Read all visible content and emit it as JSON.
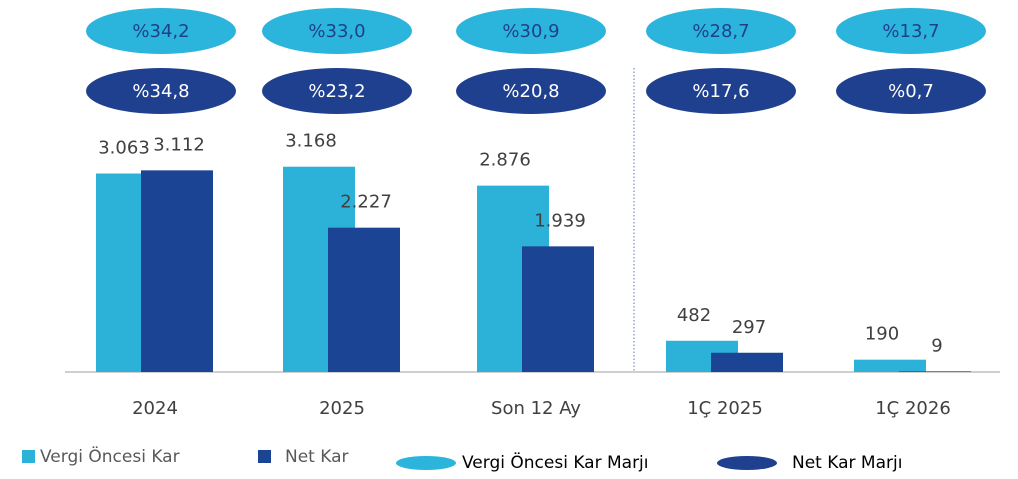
{
  "chart_data": {
    "type": "bar",
    "categories": [
      "2024",
      "2025",
      "Son 12 Ay",
      "1Ç 2025",
      "1Ç 2026"
    ],
    "series": [
      {
        "name": "Vergi Öncesi Kar",
        "color": "#2cb1d8",
        "values": [
          3063,
          3168,
          2876,
          482,
          190
        ],
        "value_labels": [
          "3.063",
          "3.168",
          "2.876",
          "482",
          "190"
        ]
      },
      {
        "name": "Net Kar",
        "color": "#1c4494",
        "values": [
          3112,
          2227,
          1939,
          297,
          9
        ],
        "value_labels": [
          "3.112",
          "2.227",
          "1.939",
          "297",
          "9"
        ]
      }
    ],
    "margin_series": [
      {
        "name": "Vergi Öncesi Kar Marjı",
        "color": "#2cb5dc",
        "values": [
          34.2,
          33.0,
          30.9,
          28.7,
          13.7
        ],
        "value_labels": [
          "%34,2",
          "%33,0",
          "%30,9",
          "%28,7",
          "%13,7"
        ]
      },
      {
        "name": "Net Kar Marjı",
        "color": "#1f3f8f",
        "values": [
          34.8,
          23.2,
          20.8,
          17.6,
          0.7
        ],
        "value_labels": [
          "%34,8",
          "%23,2",
          "%20,8",
          "%17,6",
          "%0,7"
        ]
      }
    ]
  }
}
